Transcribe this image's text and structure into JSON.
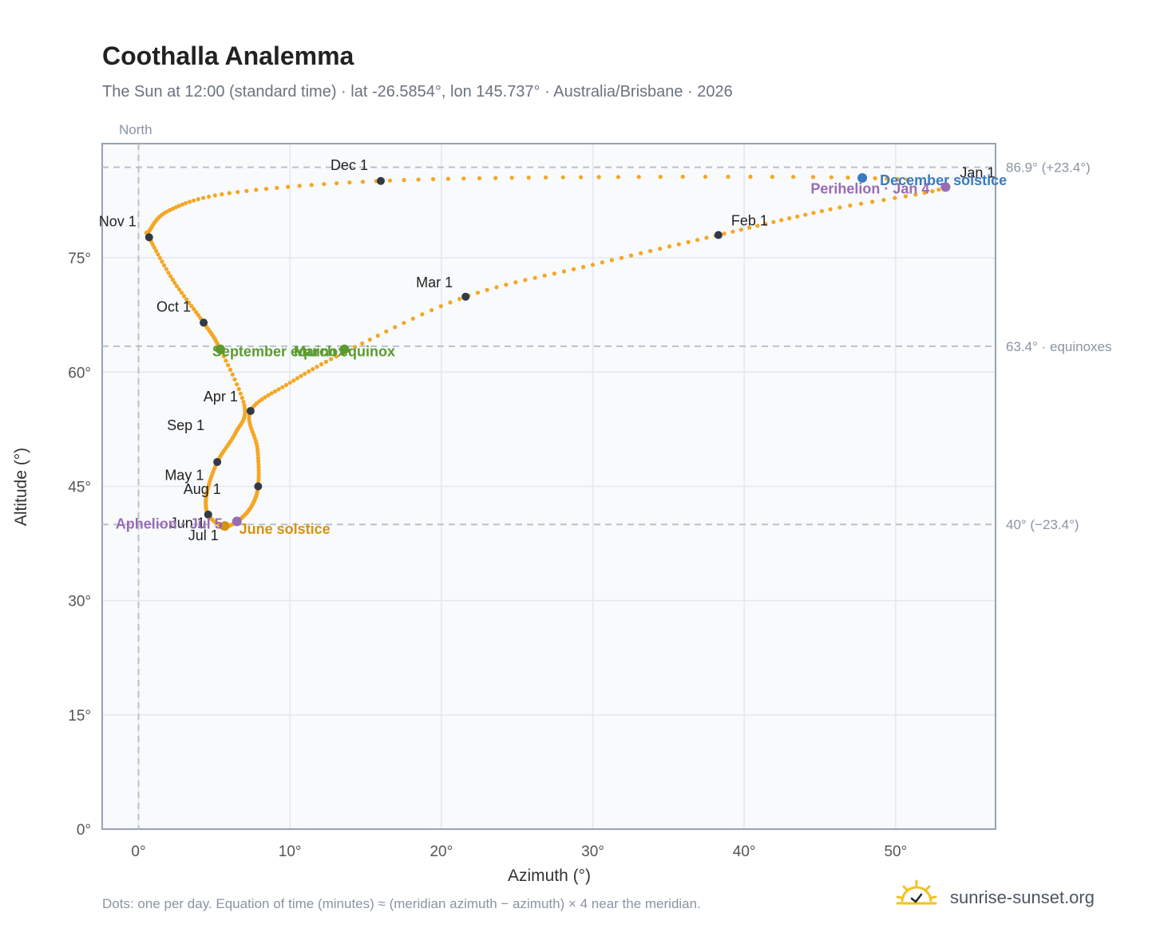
{
  "header": {
    "title": "Coothalla Analemma",
    "subtitle": "The Sun at 12:00 (standard time) · lat -26.5854°, lon 145.737° · Australia/Brisbane · 2026"
  },
  "footer": {
    "note": "Dots: one per day. Equation of time (minutes) ≈ (meridian azimuth − azimuth) × 4 near the meridian.",
    "brand": "sunrise-sunset.org"
  },
  "colors": {
    "analemma": "#f5a623",
    "month_dot": "#333a45",
    "solstice_june": "#d4930f",
    "solstice_december": "#3a7bbf",
    "equinox": "#5a9a2e",
    "apsis": "#9a6bb5",
    "ref_line": "#b8c2cc",
    "plot_bg": "#f8fafc",
    "grid": "#e3e8ee",
    "frame": "#97a3b3"
  },
  "chart_data": {
    "type": "scatter",
    "title": "Coothalla Analemma",
    "xlabel": "Azimuth (°)",
    "ylabel": "Altitude (°)",
    "xlim": [
      -2.4,
      56.6
    ],
    "ylim": [
      0,
      90
    ],
    "x_ticks": [
      0,
      10,
      20,
      30,
      40,
      50
    ],
    "x_tick_labels": [
      "0°",
      "10°",
      "20°",
      "30°",
      "40°",
      "50°"
    ],
    "y_ticks": [
      0,
      15,
      30,
      45,
      60,
      75
    ],
    "y_tick_labels": [
      "0°",
      "15°",
      "30°",
      "45°",
      "60°",
      "75°"
    ],
    "grid": true,
    "north_marker": {
      "azimuth": 0,
      "label": "North"
    },
    "reference_lines": [
      {
        "altitude": 86.9,
        "label": "86.9° (+23.4°)"
      },
      {
        "altitude": 63.4,
        "label": "63.4° · equinoxes"
      },
      {
        "altitude": 40.0,
        "label": "40° (−23.4°)"
      }
    ],
    "month_markers": [
      {
        "label": "Jan 1",
        "az": 53.3,
        "alt": 84.3
      },
      {
        "label": "Feb 1",
        "az": 38.3,
        "alt": 78.0
      },
      {
        "label": "Mar 1",
        "az": 21.6,
        "alt": 69.9
      },
      {
        "label": "Apr 1",
        "az": 7.4,
        "alt": 54.9
      },
      {
        "label": "May 1",
        "az": 7.9,
        "alt": 45.0
      },
      {
        "label": "Jun 1",
        "az": 6.5,
        "alt": 40.4
      },
      {
        "label": "Jul 1",
        "az": 5.6,
        "alt": 39.8
      },
      {
        "label": "Aug 1",
        "az": 4.6,
        "alt": 41.3
      },
      {
        "label": "Sep 1",
        "az": 5.2,
        "alt": 48.2
      },
      {
        "label": "Oct 1",
        "az": 4.3,
        "alt": 66.5
      },
      {
        "label": "Nov 1",
        "az": 0.7,
        "alt": 77.7
      },
      {
        "label": "Dec 1",
        "az": 16.0,
        "alt": 85.1
      }
    ],
    "events": [
      {
        "label": "December solstice",
        "az": 47.8,
        "alt": 85.5,
        "kind": "solstice_december"
      },
      {
        "label": "Perihelion · Jan 4",
        "az": 53.3,
        "alt": 84.3,
        "kind": "apsis"
      },
      {
        "label": "March equinox",
        "az": 13.6,
        "alt": 63.0,
        "kind": "equinox"
      },
      {
        "label": "September equinox",
        "az": 5.4,
        "alt": 63.0,
        "kind": "equinox"
      },
      {
        "label": "June solstice",
        "az": 5.7,
        "alt": 39.8,
        "kind": "solstice_june"
      },
      {
        "label": "Aphelion · Jul 5",
        "az": 6.5,
        "alt": 40.4,
        "kind": "apsis"
      }
    ],
    "analemma_path": [
      {
        "az": 53.3,
        "alt": 84.3
      },
      {
        "az": 45.5,
        "alt": 81.3
      },
      {
        "az": 38.3,
        "alt": 78.0
      },
      {
        "az": 30.0,
        "alt": 74.1
      },
      {
        "az": 21.6,
        "alt": 69.9
      },
      {
        "az": 14.0,
        "alt": 63.0
      },
      {
        "az": 10.0,
        "alt": 58.6
      },
      {
        "az": 7.4,
        "alt": 54.9
      },
      {
        "az": 7.85,
        "alt": 50.0
      },
      {
        "az": 7.9,
        "alt": 45.0
      },
      {
        "az": 7.4,
        "alt": 42.2
      },
      {
        "az": 6.5,
        "alt": 40.4
      },
      {
        "az": 5.6,
        "alt": 39.8
      },
      {
        "az": 4.6,
        "alt": 41.3
      },
      {
        "az": 4.5,
        "alt": 44.0
      },
      {
        "az": 5.2,
        "alt": 48.2
      },
      {
        "az": 6.4,
        "alt": 52.0
      },
      {
        "az": 7.0,
        "alt": 55.5
      },
      {
        "az": 5.4,
        "alt": 63.0
      },
      {
        "az": 4.3,
        "alt": 66.5
      },
      {
        "az": 2.3,
        "alt": 72.0
      },
      {
        "az": 0.7,
        "alt": 77.7
      },
      {
        "az": 0.7,
        "alt": 78.5
      },
      {
        "az": 2.0,
        "alt": 81.2
      },
      {
        "az": 6.0,
        "alt": 83.5
      },
      {
        "az": 16.0,
        "alt": 85.1
      },
      {
        "az": 30.0,
        "alt": 85.6
      },
      {
        "az": 47.8,
        "alt": 85.5
      },
      {
        "az": 53.3,
        "alt": 84.3
      }
    ]
  }
}
